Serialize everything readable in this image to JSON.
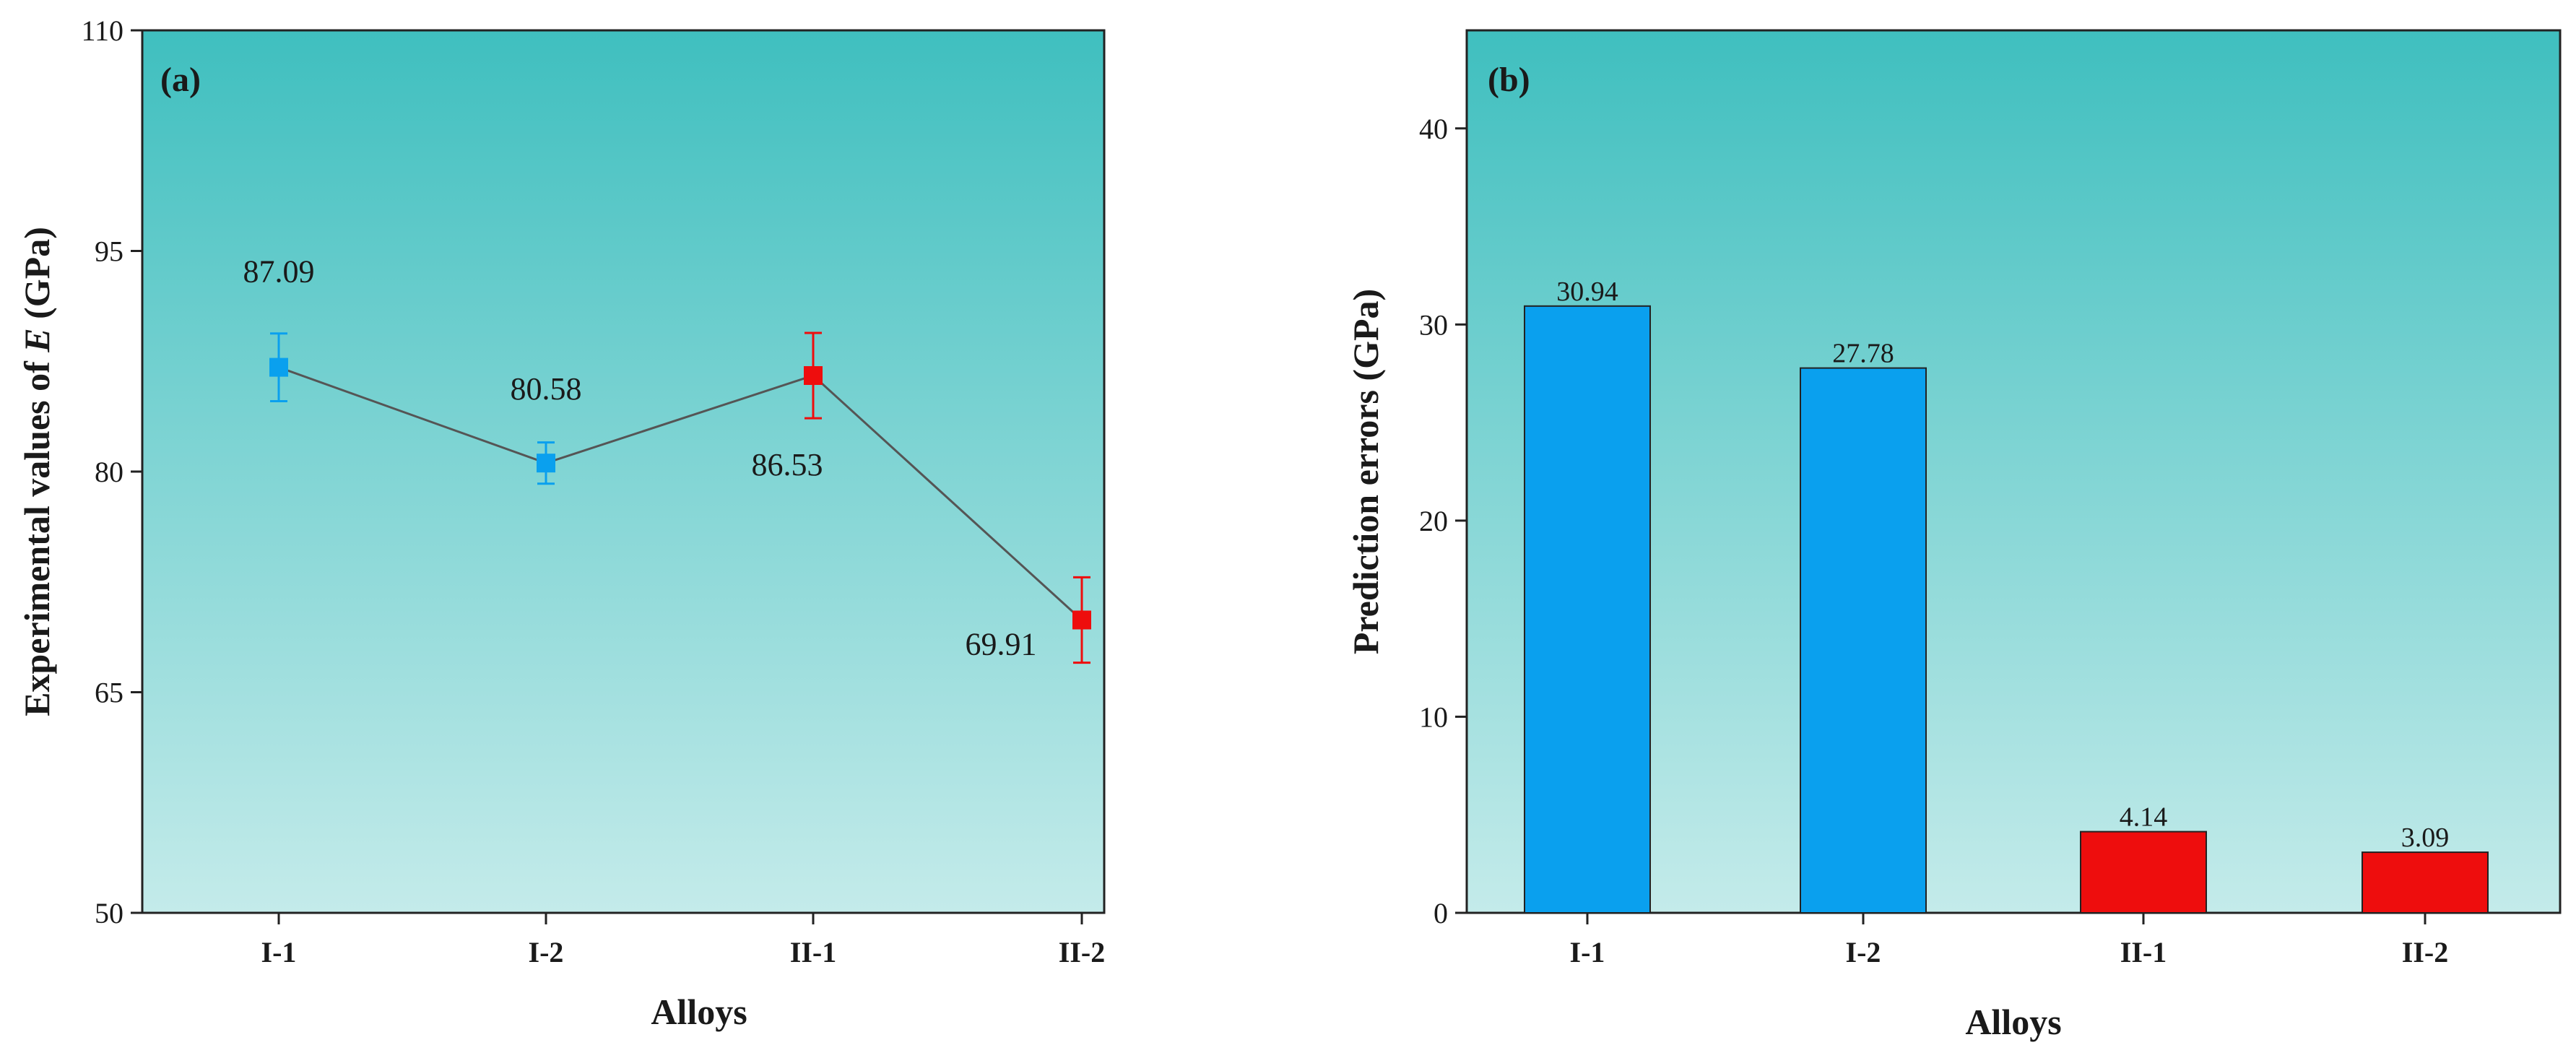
{
  "colors": {
    "bg_top": "#3fbfbf",
    "bg_bottom": "#c4ebea",
    "series_I": "#0aa0ee",
    "series_II": "#ee0d0d",
    "line": "#555555",
    "axis": "#222222"
  },
  "chart_data": [
    {
      "type": "line",
      "panel_tag": "(a)",
      "categories": [
        "I-1",
        "I-2",
        "II-1",
        "II-2"
      ],
      "values": [
        87.09,
        80.58,
        86.53,
        69.91
      ],
      "errors": [
        2.3,
        1.4,
        2.9,
        2.9
      ],
      "point_labels": [
        "87.09",
        "80.58",
        "86.53",
        "69.91"
      ],
      "point_series": [
        "I",
        "I",
        "II",
        "II"
      ],
      "xlabel": "Alloys",
      "ylabel_prefix": "Experimental values of ",
      "ylabel_symbol": "E",
      "ylabel_suffix": " (GPa)",
      "ylim": [
        50,
        110
      ],
      "yticks": [
        50,
        65,
        80,
        95,
        110
      ],
      "ytick_labels": [
        "50",
        "65",
        "80",
        "95",
        "110"
      ]
    },
    {
      "type": "bar",
      "panel_tag": "(b)",
      "categories": [
        "I-1",
        "I-2",
        "II-1",
        "II-2"
      ],
      "values": [
        30.94,
        27.78,
        4.14,
        3.09
      ],
      "bar_labels": [
        "30.94",
        "27.78",
        "4.14",
        "3.09"
      ],
      "bar_series": [
        "I",
        "I",
        "II",
        "II"
      ],
      "xlabel": "Alloys",
      "ylabel": "Prediction errors (GPa)",
      "ylim": [
        0,
        45
      ],
      "yticks": [
        0,
        10,
        20,
        30,
        40
      ],
      "ytick_labels": [
        "0",
        "10",
        "20",
        "30",
        "40"
      ]
    }
  ]
}
